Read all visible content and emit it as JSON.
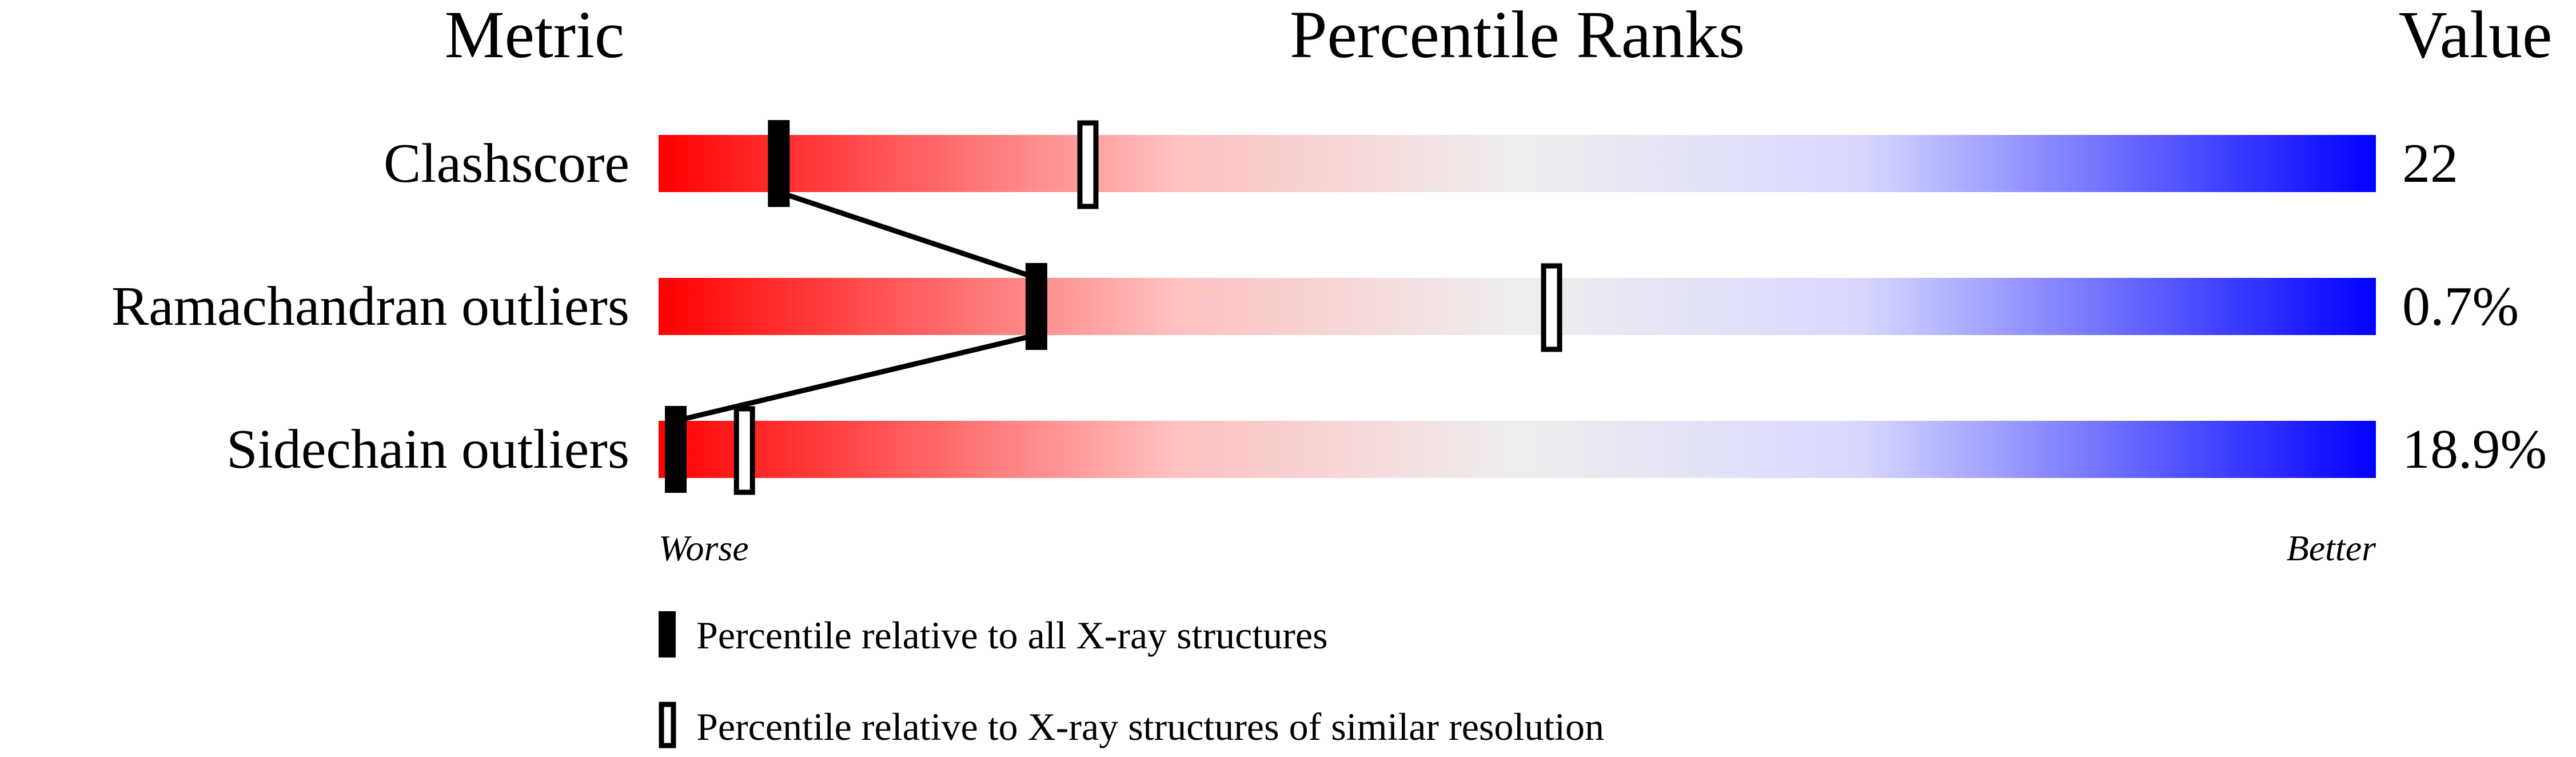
{
  "chart_data": {
    "type": "bar",
    "headers": {
      "metric": "Metric",
      "percentile": "Percentile Ranks",
      "value": "Value"
    },
    "xlim": [
      0,
      100
    ],
    "gradient_colors": [
      "#ff0000",
      "#eeeeee",
      "#0000ff"
    ],
    "rows": [
      {
        "metric": "Clashscore",
        "value": "22",
        "percentile_all": 7,
        "percentile_similar": 25
      },
      {
        "metric": "Ramachandran outliers",
        "value": "0.7%",
        "percentile_all": 22,
        "percentile_similar": 52
      },
      {
        "metric": "Sidechain outliers",
        "value": "18.9%",
        "percentile_all": 1,
        "percentile_similar": 5
      }
    ],
    "axis_labels": {
      "left": "Worse",
      "right": "Better"
    },
    "legend": [
      {
        "marker": "filled",
        "label": "Percentile relative to all X-ray structures"
      },
      {
        "marker": "open",
        "label": "Percentile relative to X-ray structures of similar resolution"
      }
    ]
  }
}
